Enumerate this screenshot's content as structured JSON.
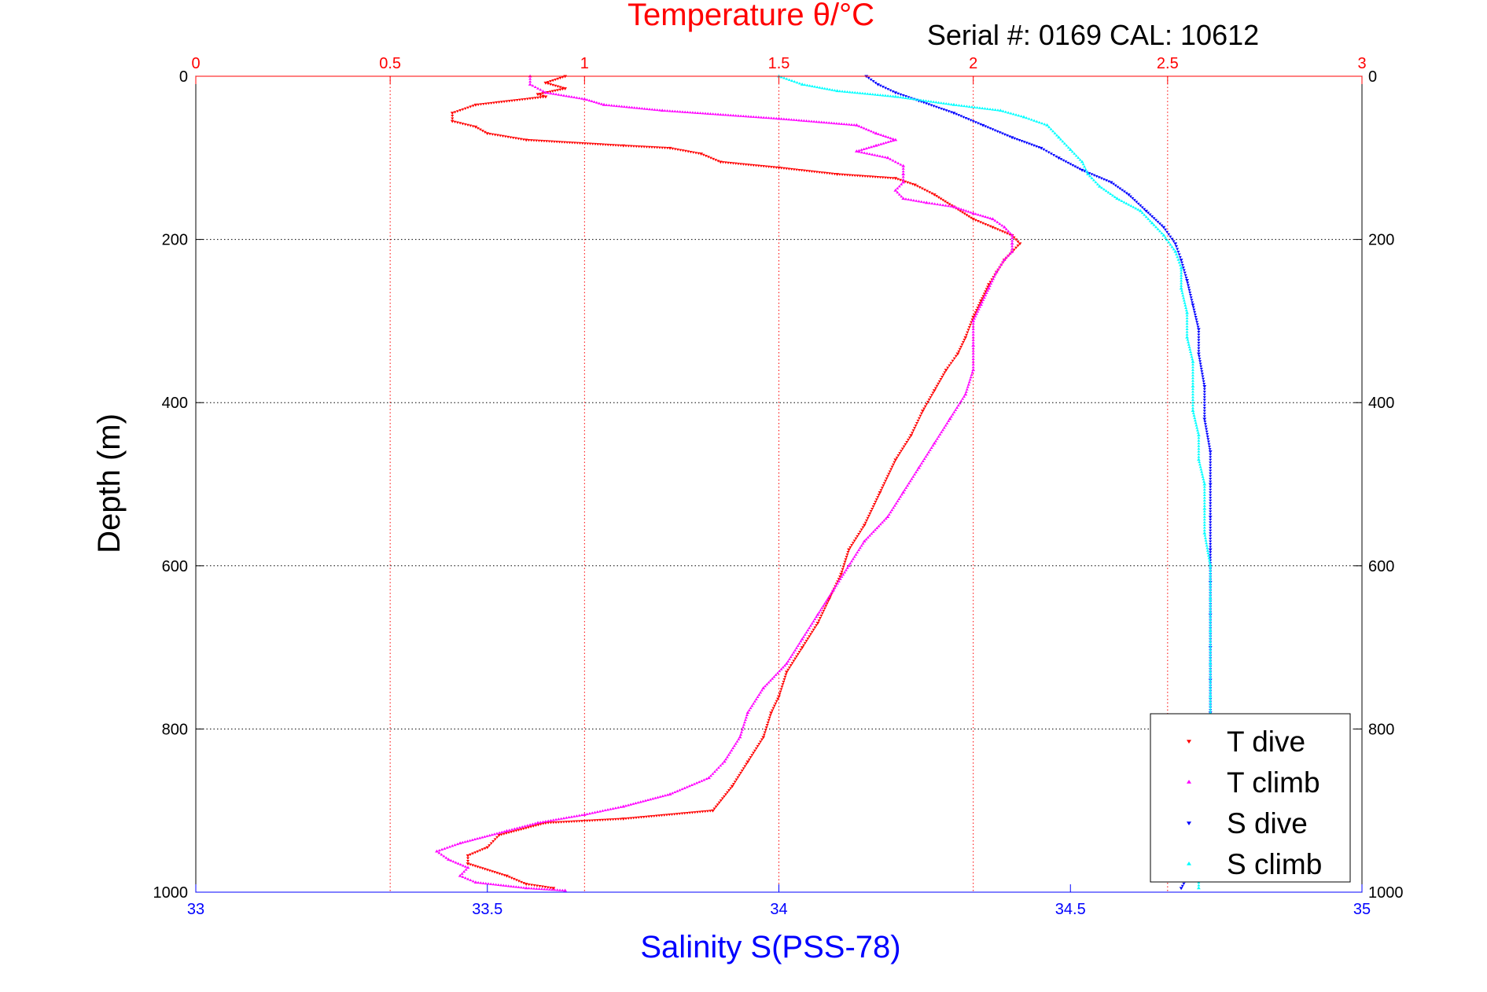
{
  "chart_data": {
    "type": "scatter",
    "title": "Temperature θ/°C",
    "subtitle": "Serial #: 0169 CAL: 10612",
    "ylabel": "Depth (m)",
    "xlabel_bottom": "Salinity S(PSS-78)",
    "xlabel_top": "Temperature θ/°C",
    "ylim": [
      0,
      1000
    ],
    "y_reversed": true,
    "xlim_bottom": [
      33,
      35
    ],
    "xlim_top": [
      0,
      3
    ],
    "yticks": [
      "0",
      "200",
      "400",
      "600",
      "800",
      "1000"
    ],
    "xticks_bottom": [
      "33",
      "33.5",
      "34",
      "34.5",
      "35"
    ],
    "xticks_top": [
      "0",
      "0.5",
      "1",
      "1.5",
      "2",
      "2.5",
      "3"
    ],
    "grid": true,
    "legend_position": "bottom-right",
    "colors": {
      "temperature_axis": "#ff0000",
      "salinity_axis": "#0000ff",
      "grid_vertical": "#ff0000",
      "grid_horizontal": "#000000"
    },
    "series": [
      {
        "name": "T dive",
        "axis": "temperature",
        "color": "#ff0000",
        "marker": "triangle-down",
        "points": [
          [
            0.95,
            0
          ],
          [
            0.9,
            8
          ],
          [
            0.95,
            15
          ],
          [
            0.88,
            22
          ],
          [
            0.9,
            25
          ],
          [
            0.72,
            35
          ],
          [
            0.66,
            45
          ],
          [
            0.66,
            55
          ],
          [
            0.72,
            62
          ],
          [
            0.75,
            70
          ],
          [
            0.85,
            78
          ],
          [
            1.1,
            85
          ],
          [
            1.22,
            88
          ],
          [
            1.3,
            95
          ],
          [
            1.35,
            105
          ],
          [
            1.5,
            112
          ],
          [
            1.65,
            120
          ],
          [
            1.8,
            125
          ],
          [
            1.85,
            133
          ],
          [
            1.9,
            145
          ],
          [
            1.95,
            160
          ],
          [
            2.0,
            175
          ],
          [
            2.05,
            185
          ],
          [
            2.1,
            195
          ],
          [
            2.12,
            205
          ],
          [
            2.1,
            215
          ],
          [
            2.08,
            225
          ],
          [
            2.06,
            240
          ],
          [
            2.04,
            255
          ],
          [
            2.02,
            275
          ],
          [
            2.0,
            295
          ],
          [
            1.98,
            320
          ],
          [
            1.96,
            340
          ],
          [
            1.93,
            360
          ],
          [
            1.9,
            385
          ],
          [
            1.87,
            410
          ],
          [
            1.84,
            440
          ],
          [
            1.8,
            470
          ],
          [
            1.76,
            510
          ],
          [
            1.72,
            550
          ],
          [
            1.68,
            580
          ],
          [
            1.66,
            610
          ],
          [
            1.63,
            640
          ],
          [
            1.6,
            670
          ],
          [
            1.56,
            700
          ],
          [
            1.52,
            730
          ],
          [
            1.5,
            760
          ],
          [
            1.48,
            780
          ],
          [
            1.46,
            810
          ],
          [
            1.42,
            840
          ],
          [
            1.38,
            870
          ],
          [
            1.33,
            900
          ],
          [
            1.1,
            910
          ],
          [
            0.9,
            915
          ],
          [
            0.78,
            930
          ],
          [
            0.75,
            945
          ],
          [
            0.7,
            955
          ],
          [
            0.7,
            965
          ],
          [
            0.8,
            980
          ],
          [
            0.85,
            990
          ],
          [
            0.92,
            995
          ]
        ]
      },
      {
        "name": "T climb",
        "axis": "temperature",
        "color": "#ff00ff",
        "marker": "triangle-up",
        "points": [
          [
            0.86,
            0
          ],
          [
            0.86,
            10
          ],
          [
            0.9,
            20
          ],
          [
            1.0,
            28
          ],
          [
            1.05,
            35
          ],
          [
            1.2,
            42
          ],
          [
            1.5,
            52
          ],
          [
            1.7,
            60
          ],
          [
            1.75,
            70
          ],
          [
            1.8,
            78
          ],
          [
            1.75,
            85
          ],
          [
            1.7,
            92
          ],
          [
            1.78,
            100
          ],
          [
            1.82,
            110
          ],
          [
            1.82,
            120
          ],
          [
            1.82,
            130
          ],
          [
            1.8,
            140
          ],
          [
            1.82,
            150
          ],
          [
            1.88,
            155
          ],
          [
            1.95,
            160
          ],
          [
            2.0,
            168
          ],
          [
            2.05,
            175
          ],
          [
            2.08,
            185
          ],
          [
            2.1,
            195
          ],
          [
            2.1,
            205
          ],
          [
            2.1,
            215
          ],
          [
            2.08,
            225
          ],
          [
            2.06,
            240
          ],
          [
            2.04,
            260
          ],
          [
            2.02,
            280
          ],
          [
            2.0,
            300
          ],
          [
            2.0,
            330
          ],
          [
            2.0,
            360
          ],
          [
            1.98,
            390
          ],
          [
            1.94,
            420
          ],
          [
            1.9,
            450
          ],
          [
            1.86,
            480
          ],
          [
            1.82,
            510
          ],
          [
            1.78,
            540
          ],
          [
            1.72,
            570
          ],
          [
            1.68,
            600
          ],
          [
            1.64,
            630
          ],
          [
            1.6,
            660
          ],
          [
            1.56,
            690
          ],
          [
            1.52,
            720
          ],
          [
            1.46,
            750
          ],
          [
            1.42,
            780
          ],
          [
            1.4,
            810
          ],
          [
            1.36,
            840
          ],
          [
            1.32,
            860
          ],
          [
            1.22,
            880
          ],
          [
            1.1,
            895
          ],
          [
            1.0,
            905
          ],
          [
            0.88,
            915
          ],
          [
            0.8,
            925
          ],
          [
            0.68,
            940
          ],
          [
            0.62,
            950
          ],
          [
            0.65,
            960
          ],
          [
            0.7,
            970
          ],
          [
            0.68,
            980
          ],
          [
            0.72,
            988
          ],
          [
            0.85,
            995
          ],
          [
            0.95,
            998
          ]
        ]
      },
      {
        "name": "S dive",
        "axis": "salinity",
        "color": "#0000ff",
        "marker": "triangle-down",
        "points": [
          [
            34.15,
            0
          ],
          [
            34.17,
            10
          ],
          [
            34.2,
            20
          ],
          [
            34.24,
            30
          ],
          [
            34.3,
            45
          ],
          [
            34.35,
            60
          ],
          [
            34.4,
            75
          ],
          [
            34.45,
            88
          ],
          [
            34.48,
            100
          ],
          [
            34.52,
            115
          ],
          [
            34.57,
            130
          ],
          [
            34.6,
            145
          ],
          [
            34.63,
            165
          ],
          [
            34.66,
            185
          ],
          [
            34.68,
            205
          ],
          [
            34.69,
            225
          ],
          [
            34.7,
            250
          ],
          [
            34.71,
            280
          ],
          [
            34.72,
            310
          ],
          [
            34.72,
            340
          ],
          [
            34.73,
            380
          ],
          [
            34.73,
            420
          ],
          [
            34.74,
            460
          ],
          [
            34.74,
            500
          ],
          [
            34.74,
            540
          ],
          [
            34.74,
            580
          ],
          [
            34.74,
            620
          ],
          [
            34.74,
            660
          ],
          [
            34.74,
            700
          ],
          [
            34.74,
            740
          ],
          [
            34.74,
            780
          ],
          [
            34.74,
            820
          ],
          [
            34.74,
            860
          ],
          [
            34.73,
            900
          ],
          [
            34.72,
            940
          ],
          [
            34.71,
            970
          ],
          [
            34.69,
            995
          ]
        ]
      },
      {
        "name": "S climb",
        "axis": "salinity",
        "color": "#00ffff",
        "marker": "triangle-up",
        "points": [
          [
            34.0,
            0
          ],
          [
            34.04,
            10
          ],
          [
            34.1,
            18
          ],
          [
            34.2,
            25
          ],
          [
            34.3,
            35
          ],
          [
            34.38,
            42
          ],
          [
            34.42,
            50
          ],
          [
            34.46,
            60
          ],
          [
            34.48,
            75
          ],
          [
            34.5,
            90
          ],
          [
            34.52,
            105
          ],
          [
            34.53,
            120
          ],
          [
            34.55,
            135
          ],
          [
            34.58,
            150
          ],
          [
            34.62,
            165
          ],
          [
            34.64,
            180
          ],
          [
            34.66,
            195
          ],
          [
            34.68,
            215
          ],
          [
            34.69,
            235
          ],
          [
            34.69,
            260
          ],
          [
            34.7,
            290
          ],
          [
            34.7,
            320
          ],
          [
            34.71,
            350
          ],
          [
            34.71,
            380
          ],
          [
            34.71,
            410
          ],
          [
            34.72,
            440
          ],
          [
            34.72,
            470
          ],
          [
            34.73,
            500
          ],
          [
            34.73,
            530
          ],
          [
            34.73,
            560
          ],
          [
            34.74,
            600
          ],
          [
            34.74,
            640
          ],
          [
            34.74,
            680
          ],
          [
            34.74,
            720
          ],
          [
            34.74,
            760
          ],
          [
            34.74,
            800
          ],
          [
            34.74,
            840
          ],
          [
            34.74,
            880
          ],
          [
            34.73,
            920
          ],
          [
            34.73,
            950
          ],
          [
            34.72,
            975
          ],
          [
            34.72,
            995
          ]
        ]
      }
    ]
  }
}
